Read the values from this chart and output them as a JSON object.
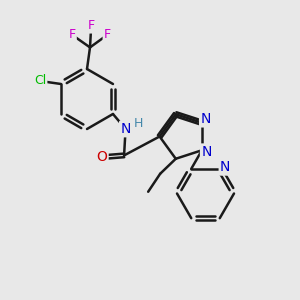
{
  "bg_color": "#e8e8e8",
  "bond_color": "#1a1a1a",
  "bond_width": 1.8,
  "sep": 0.07,
  "fs": 9,
  "colors": {
    "F": "#cc00cc",
    "Cl": "#00bb00",
    "N": "#0000cc",
    "O": "#cc0000",
    "H": "#4488aa",
    "C": "#1a1a1a"
  }
}
